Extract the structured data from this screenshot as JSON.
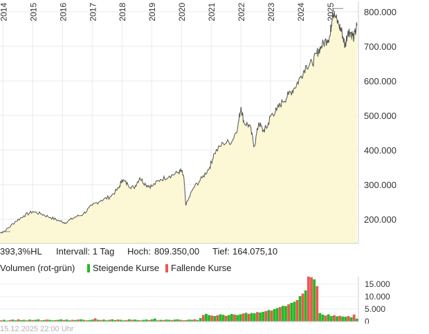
{
  "chart_data": [
    {
      "type": "area",
      "x_ticks": [
        "2014",
        "2015",
        "2016",
        "2017",
        "2018",
        "2019",
        "2020",
        "2021",
        "2022",
        "2023",
        "2024",
        "2025"
      ],
      "y_ticks": [
        "200.000",
        "300.000",
        "400.000",
        "500.000",
        "600.000",
        "700.000",
        "800.000"
      ],
      "ylim": [
        130000,
        830000
      ],
      "xlim": [
        2013.9,
        2025.95
      ],
      "grid": true,
      "series": [
        {
          "x": [
            2013.9,
            2014.1,
            2014.4,
            2014.7,
            2015.0,
            2015.3,
            2015.6,
            2015.9,
            2016.1,
            2016.4,
            2016.7,
            2017.0,
            2017.3,
            2017.6,
            2017.9,
            2018.0,
            2018.2,
            2018.4,
            2018.6,
            2018.8,
            2019.0,
            2019.3,
            2019.6,
            2019.9,
            2020.0,
            2020.08,
            2020.15,
            2020.4,
            2020.7,
            2020.95,
            2021.1,
            2021.4,
            2021.7,
            2021.9,
            2022.0,
            2022.1,
            2022.3,
            2022.45,
            2022.6,
            2022.75,
            2022.9,
            2023.0,
            2023.2,
            2023.4,
            2023.6,
            2023.8,
            2024.0,
            2024.2,
            2024.4,
            2024.55,
            2024.7,
            2024.9,
            2025.0,
            2025.08,
            2025.15,
            2025.3,
            2025.4,
            2025.5,
            2025.6,
            2025.7,
            2025.8,
            2025.9
          ],
          "values": [
            160000,
            168000,
            192000,
            210000,
            222000,
            215000,
            205000,
            195000,
            190000,
            205000,
            215000,
            240000,
            255000,
            265000,
            290000,
            315000,
            300000,
            290000,
            320000,
            300000,
            295000,
            315000,
            325000,
            335000,
            340000,
            320000,
            240000,
            290000,
            320000,
            350000,
            390000,
            420000,
            425000,
            470000,
            525000,
            480000,
            470000,
            410000,
            480000,
            455000,
            470000,
            500000,
            515000,
            540000,
            560000,
            580000,
            610000,
            645000,
            650000,
            680000,
            700000,
            720000,
            730000,
            800000,
            790000,
            760000,
            740000,
            700000,
            745000,
            740000,
            725000,
            760000
          ]
        }
      ],
      "stats": {
        "performance": "393,3%HL",
        "interval_label": "Intervall: 1 Tag",
        "high_label": "Hoch:",
        "high": "809.350,00",
        "low_label": "Tief:",
        "low": "164.075,10"
      }
    },
    {
      "type": "bar",
      "y_ticks": [
        "0",
        "5.000",
        "10.000",
        "15.000"
      ],
      "ylim": [
        0,
        18000
      ],
      "rising_color": "#22bb22",
      "falling_color": "#ee5555",
      "title": "Volumen (rot-grün)",
      "legend": [
        "Steigende Kurse",
        "Fallende Kurse"
      ],
      "legend_placement": "top-left",
      "weekly_volume": [
        500,
        700,
        400,
        600,
        800,
        500,
        900,
        600,
        700,
        500,
        800,
        600,
        700,
        900,
        500,
        600,
        800,
        700,
        500,
        600,
        700,
        900,
        600,
        800,
        500,
        700,
        600,
        800,
        900,
        700,
        500,
        600,
        800,
        1300,
        700,
        600,
        800,
        500,
        700,
        900,
        600,
        800,
        700,
        500,
        600,
        900,
        700,
        800,
        600,
        500,
        700,
        800,
        600,
        900,
        1200,
        500,
        700,
        600,
        800,
        700,
        600,
        800,
        900,
        700,
        500,
        600,
        800,
        700,
        900,
        600,
        1400,
        2600,
        3100,
        2600,
        2400,
        2200,
        2500,
        2900,
        2700,
        2300,
        2600,
        3000,
        2800,
        2600,
        2900,
        3200,
        3500,
        3100,
        3400,
        3300,
        3800,
        3600,
        3900,
        4200,
        4600,
        4400,
        5000,
        5400,
        5800,
        6300,
        6200,
        6900,
        7500,
        7900,
        8600,
        10200,
        11200,
        12500,
        18000,
        17700,
        16900,
        14200,
        3400,
        2800,
        2400,
        2900,
        2200,
        2500,
        2100,
        2300,
        2000,
        1900,
        2200,
        1700,
        2800,
        1200
      ],
      "weekly_direction": [
        "f",
        "r",
        "r",
        "f",
        "r",
        "r",
        "f",
        "r",
        "r",
        "f",
        "r",
        "f",
        "r",
        "r",
        "f",
        "r",
        "f",
        "r",
        "r",
        "f",
        "r",
        "r",
        "f",
        "r",
        "r",
        "f",
        "r",
        "f",
        "r",
        "r",
        "f",
        "r",
        "r",
        "f",
        "r",
        "f",
        "r",
        "r",
        "f",
        "r",
        "r",
        "f",
        "r",
        "r",
        "f",
        "r",
        "f",
        "r",
        "r",
        "f",
        "r",
        "r",
        "f",
        "r",
        "r",
        "f",
        "r",
        "f",
        "r",
        "r",
        "f",
        "r",
        "r",
        "f",
        "r",
        "f",
        "r",
        "r",
        "f",
        "r",
        "r",
        "f",
        "r",
        "r",
        "f",
        "r",
        "f",
        "r",
        "r",
        "f",
        "r",
        "r",
        "f",
        "r",
        "r",
        "f",
        "r",
        "f",
        "r",
        "r",
        "f",
        "r",
        "r",
        "f",
        "r",
        "f",
        "r",
        "r",
        "f",
        "r",
        "r",
        "f",
        "r",
        "r",
        "f",
        "r",
        "f",
        "r",
        "f",
        "f",
        "r",
        "f",
        "r",
        "r",
        "f",
        "r",
        "r",
        "f",
        "r",
        "f",
        "r",
        "r",
        "f",
        "r",
        "f",
        "r"
      ]
    }
  ],
  "footer": {
    "timestamp": "15.12.2025 22:00 Uhr"
  }
}
